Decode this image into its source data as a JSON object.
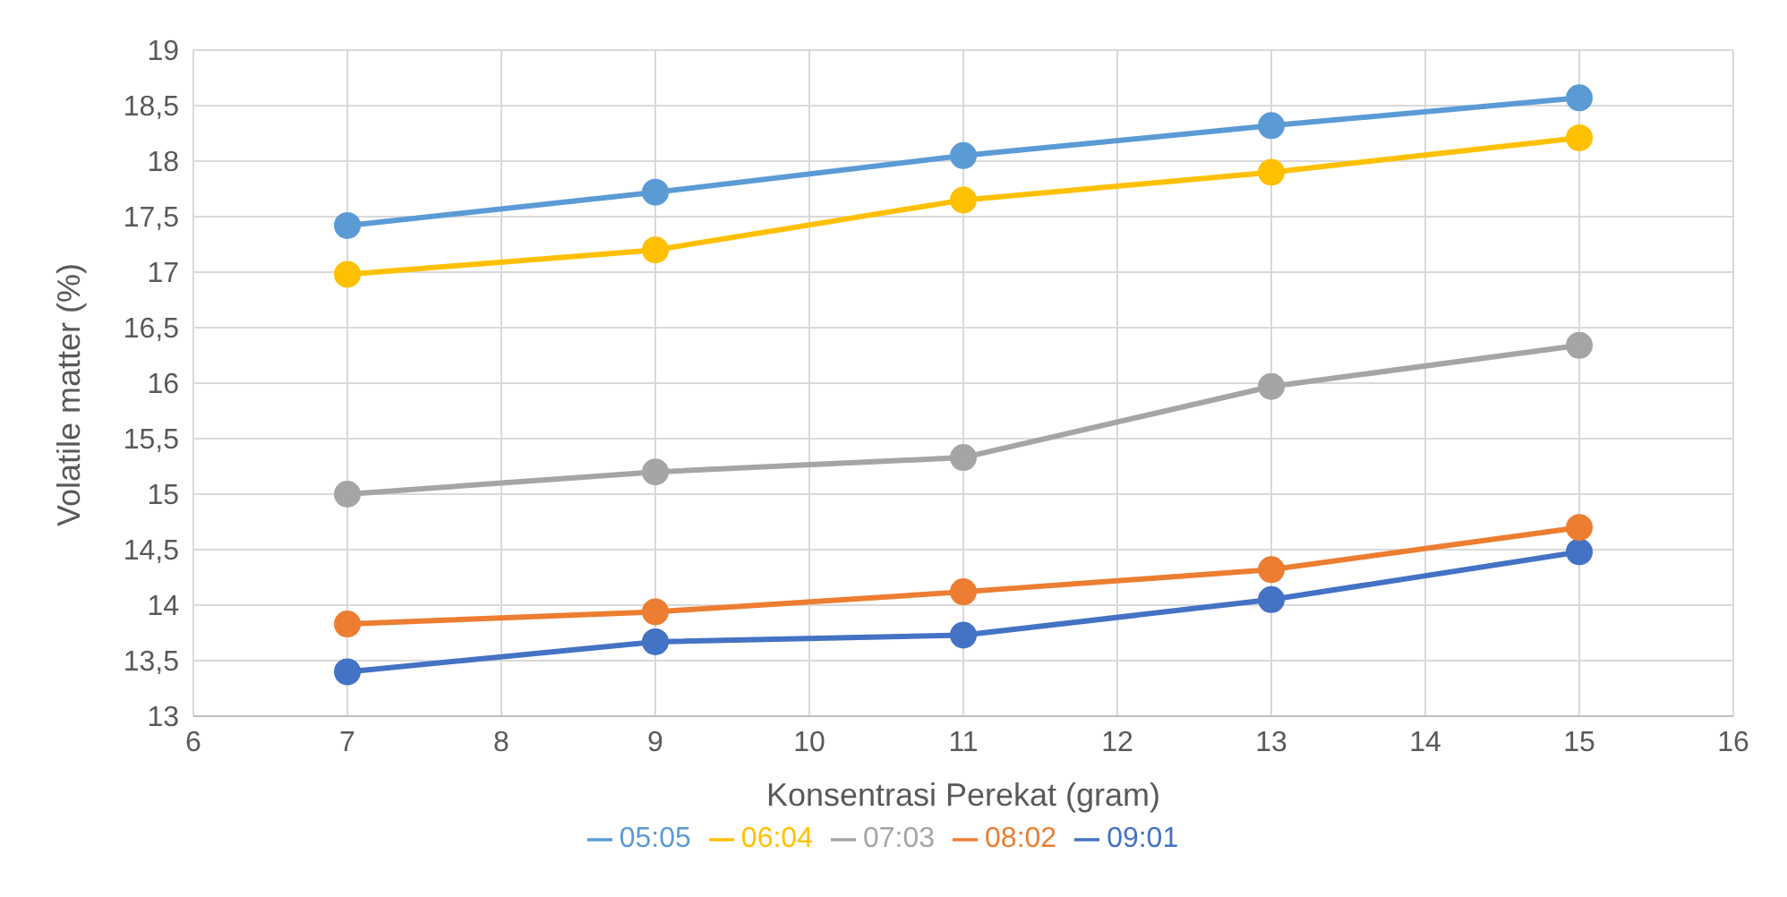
{
  "chart_data": {
    "type": "line",
    "xlabel": "Konsentrasi Perekat (gram)",
    "ylabel": "Volatile matter (%)",
    "x": [
      7,
      9,
      11,
      13,
      15
    ],
    "series": [
      {
        "name": "09:01",
        "color": "#4472c4",
        "values": [
          13.4,
          13.67,
          13.73,
          14.05,
          14.48
        ]
      },
      {
        "name": "08:02",
        "color": "#ed7d31",
        "values": [
          13.83,
          13.94,
          14.12,
          14.32,
          14.7
        ]
      },
      {
        "name": "07:03",
        "color": "#a5a5a5",
        "values": [
          15.0,
          15.2,
          15.33,
          15.97,
          16.34
        ]
      },
      {
        "name": "06:04",
        "color": "#ffc000",
        "values": [
          16.98,
          17.2,
          17.65,
          17.9,
          18.21
        ]
      },
      {
        "name": "05:05",
        "color": "#5b9bd5",
        "values": [
          17.42,
          17.72,
          18.05,
          18.32,
          18.57
        ]
      }
    ],
    "xlim": [
      6,
      16
    ],
    "xticks": [
      6,
      7,
      8,
      9,
      10,
      11,
      12,
      13,
      14,
      15,
      16
    ],
    "ylim": [
      13,
      19
    ],
    "yticks": [
      13,
      {
        "value": 13.5,
        "label": "13,5"
      },
      14,
      {
        "value": 14.5,
        "label": "14,5"
      },
      15,
      {
        "value": 15.5,
        "label": "15,5"
      },
      16,
      {
        "value": 16.5,
        "label": "16,5"
      },
      17,
      {
        "value": 17.5,
        "label": "17,5"
      },
      18,
      {
        "value": 18.5,
        "label": "18,5"
      },
      19
    ],
    "grid": true,
    "legend": "bottom",
    "marker": "circle",
    "line_style": "solid"
  }
}
